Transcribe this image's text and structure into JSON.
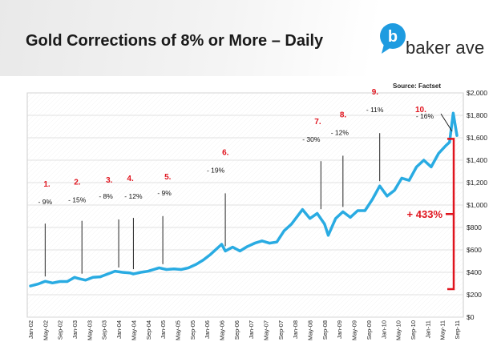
{
  "header": {
    "title": "Gold Corrections of 8% or More – Daily",
    "logo_text": "baker ave",
    "logo_icon": "speech-bubble-b-icon",
    "brand_color": "#1e9be0"
  },
  "chart_data": {
    "type": "line",
    "title": "Gold Corrections of 8% or More – Daily",
    "source": "Source: Factset",
    "line_color": "#29abe2",
    "ylim": [
      0,
      2000
    ],
    "y_ticks": [
      "$0",
      "$200",
      "$400",
      "$600",
      "$800",
      "$1,000",
      "$1,200",
      "$1,400",
      "$1,600",
      "$1,800",
      "$2,000"
    ],
    "y_tick_values": [
      0,
      200,
      400,
      600,
      800,
      1000,
      1200,
      1400,
      1600,
      1800,
      2000
    ],
    "x_ticks": [
      "Jan-02",
      "May-02",
      "Sep-02",
      "Jan-03",
      "May-03",
      "Sep-03",
      "Jan-04",
      "May-04",
      "Sep-04",
      "Jan-05",
      "May-05",
      "Sep-05",
      "Jan-06",
      "May-06",
      "Sep-06",
      "Jan-07",
      "May-07",
      "Sep-07",
      "Jan-08",
      "May-08",
      "Sep-08",
      "Jan-09",
      "May-09",
      "Sep-09",
      "Jan-10",
      "May-10",
      "Sep-10",
      "Jan-11",
      "May-11",
      "Sep-11"
    ],
    "grid": true,
    "series": [
      {
        "x": [
          "Jan-02",
          "Mar-02",
          "May-02",
          "Jul-02",
          "Sep-02",
          "Nov-02",
          "Jan-03",
          "Feb-03",
          "Apr-03",
          "Jun-03",
          "Aug-03",
          "Oct-03",
          "Dec-03",
          "Feb-04",
          "Apr-04",
          "May-04",
          "Jul-04",
          "Sep-04",
          "Dec-04",
          "Feb-05",
          "Apr-05",
          "Jun-05",
          "Aug-05",
          "Oct-05",
          "Dec-05",
          "Feb-06",
          "May-06",
          "Jun-06",
          "Aug-06",
          "Oct-06",
          "Dec-06",
          "Feb-07",
          "Apr-07",
          "Jun-07",
          "Aug-07",
          "Oct-07",
          "Dec-07",
          "Mar-08",
          "May-08",
          "Jul-08",
          "Sep-08",
          "Oct-08",
          "Dec-08",
          "Feb-09",
          "Apr-09",
          "Jun-09",
          "Aug-09",
          "Oct-09",
          "Dec-09",
          "Feb-10",
          "Apr-10",
          "Jun-10",
          "Aug-10",
          "Oct-10",
          "Dec-10",
          "Feb-11",
          "Apr-11",
          "Jun-11",
          "Jul-11",
          "Aug-11",
          "Sep-11"
        ],
        "values": [
          278,
          295,
          320,
          305,
          318,
          318,
          355,
          345,
          330,
          355,
          360,
          385,
          410,
          400,
          395,
          385,
          400,
          410,
          440,
          425,
          430,
          425,
          440,
          470,
          510,
          560,
          650,
          590,
          625,
          590,
          630,
          660,
          680,
          660,
          670,
          770,
          830,
          960,
          880,
          925,
          830,
          730,
          880,
          940,
          890,
          950,
          950,
          1050,
          1170,
          1080,
          1130,
          1240,
          1220,
          1340,
          1400,
          1340,
          1460,
          1530,
          1560,
          1820,
          1620
        ]
      }
    ],
    "annotations": [
      {
        "num": "1.",
        "pct": "- 9%",
        "x": "May-02",
        "y": 320
      },
      {
        "num": "2.",
        "pct": "- 15%",
        "x": "Mar-03",
        "y": 345
      },
      {
        "num": "3.",
        "pct": "- 8%",
        "x": "Jan-04",
        "y": 400
      },
      {
        "num": "4.",
        "pct": "- 12%",
        "x": "May-04",
        "y": 385
      },
      {
        "num": "5.",
        "pct": "- 9%",
        "x": "Jan-05",
        "y": 430
      },
      {
        "num": "6.",
        "pct": "- 19%",
        "x": "Jun-06",
        "y": 590
      },
      {
        "num": "7.",
        "pct": "- 30%",
        "x": "Aug-08",
        "y": 920
      },
      {
        "num": "8.",
        "pct": "- 12%",
        "x": "Feb-09",
        "y": 940
      },
      {
        "num": "9.",
        "pct": "- 11%",
        "x": "Dec-09",
        "y": 1170
      },
      {
        "num": "10.",
        "pct": "- 16%",
        "x": "Sep-11",
        "y": 1600
      }
    ],
    "bracket": {
      "label": "+ 433%",
      "from": 250,
      "to": 1590
    }
  }
}
